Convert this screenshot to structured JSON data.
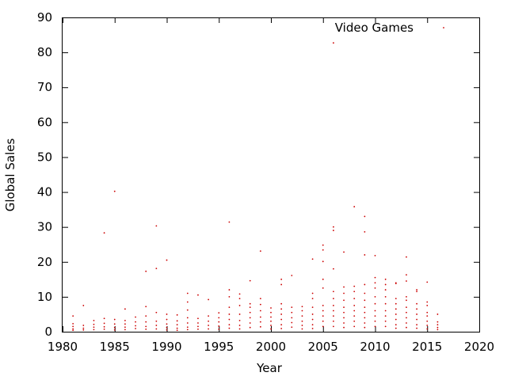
{
  "chart_data": {
    "type": "scatter",
    "title": "",
    "xlabel": "Year",
    "ylabel": "Global Sales",
    "xlim": [
      1980,
      2020
    ],
    "ylim": [
      0,
      90
    ],
    "xticks": [
      1980,
      1985,
      1990,
      1995,
      2000,
      2005,
      2010,
      2015,
      2020
    ],
    "yticks": [
      0,
      10,
      20,
      30,
      40,
      50,
      60,
      70,
      80,
      90
    ],
    "grid": false,
    "legend_position": "top-right",
    "series": [
      {
        "name": "Video Games",
        "color": "#cc0000",
        "marker": "dot",
        "points": [
          [
            1981,
            4.5
          ],
          [
            1981,
            2.3
          ],
          [
            1981,
            1.5
          ],
          [
            1981,
            0.8
          ],
          [
            1981,
            0.4
          ],
          [
            1982,
            7.5
          ],
          [
            1982,
            1.8
          ],
          [
            1982,
            1.0
          ],
          [
            1982,
            0.5
          ],
          [
            1983,
            3.2
          ],
          [
            1983,
            2.1
          ],
          [
            1983,
            1.3
          ],
          [
            1983,
            0.6
          ],
          [
            1984,
            28.3
          ],
          [
            1984,
            3.8
          ],
          [
            1984,
            2.4
          ],
          [
            1984,
            1.4
          ],
          [
            1984,
            0.7
          ],
          [
            1985,
            40.2
          ],
          [
            1985,
            3.5
          ],
          [
            1985,
            2.2
          ],
          [
            1985,
            1.2
          ],
          [
            1985,
            0.5
          ],
          [
            1986,
            6.5
          ],
          [
            1986,
            3.2
          ],
          [
            1986,
            2.2
          ],
          [
            1986,
            1.3
          ],
          [
            1986,
            0.6
          ],
          [
            1987,
            4.2
          ],
          [
            1987,
            2.8
          ],
          [
            1987,
            1.7
          ],
          [
            1987,
            0.9
          ],
          [
            1988,
            17.3
          ],
          [
            1988,
            7.2
          ],
          [
            1988,
            4.5
          ],
          [
            1988,
            2.8
          ],
          [
            1988,
            1.5
          ],
          [
            1988,
            0.7
          ],
          [
            1989,
            30.3
          ],
          [
            1989,
            18.1
          ],
          [
            1989,
            5.5
          ],
          [
            1989,
            3.0
          ],
          [
            1989,
            1.8
          ],
          [
            1989,
            0.8
          ],
          [
            1990,
            20.5
          ],
          [
            1990,
            5.0
          ],
          [
            1990,
            3.5
          ],
          [
            1990,
            2.2
          ],
          [
            1990,
            1.2
          ],
          [
            1990,
            0.5
          ],
          [
            1991,
            4.8
          ],
          [
            1991,
            3.1
          ],
          [
            1991,
            2.0
          ],
          [
            1991,
            1.0
          ],
          [
            1991,
            0.4
          ],
          [
            1992,
            11.0
          ],
          [
            1992,
            8.5
          ],
          [
            1992,
            6.2
          ],
          [
            1992,
            4.0
          ],
          [
            1992,
            2.5
          ],
          [
            1992,
            1.3
          ],
          [
            1992,
            0.6
          ],
          [
            1993,
            10.5
          ],
          [
            1993,
            3.8
          ],
          [
            1993,
            2.5
          ],
          [
            1993,
            1.5
          ],
          [
            1993,
            0.7
          ],
          [
            1994,
            9.2
          ],
          [
            1994,
            4.5
          ],
          [
            1994,
            3.0
          ],
          [
            1994,
            1.8
          ],
          [
            1994,
            0.8
          ],
          [
            1995,
            5.4
          ],
          [
            1995,
            4.0
          ],
          [
            1995,
            2.8
          ],
          [
            1995,
            1.6
          ],
          [
            1995,
            0.7
          ],
          [
            1996,
            31.4
          ],
          [
            1996,
            12.0
          ],
          [
            1996,
            10.0
          ],
          [
            1996,
            7.0
          ],
          [
            1996,
            5.0
          ],
          [
            1996,
            3.5
          ],
          [
            1996,
            2.0
          ],
          [
            1996,
            1.0
          ],
          [
            1997,
            10.8
          ],
          [
            1997,
            9.5
          ],
          [
            1997,
            7.5
          ],
          [
            1997,
            5.0
          ],
          [
            1997,
            3.2
          ],
          [
            1997,
            1.8
          ],
          [
            1997,
            0.8
          ],
          [
            1998,
            14.6
          ],
          [
            1998,
            8.0
          ],
          [
            1998,
            7.0
          ],
          [
            1998,
            5.5
          ],
          [
            1998,
            4.0
          ],
          [
            1998,
            2.5
          ],
          [
            1998,
            1.2
          ],
          [
            1999,
            23.1
          ],
          [
            1999,
            9.5
          ],
          [
            1999,
            7.8
          ],
          [
            1999,
            6.0
          ],
          [
            1999,
            4.2
          ],
          [
            1999,
            2.8
          ],
          [
            1999,
            1.4
          ],
          [
            2000,
            6.8
          ],
          [
            2000,
            5.5
          ],
          [
            2000,
            4.2
          ],
          [
            2000,
            3.0
          ],
          [
            2000,
            1.8
          ],
          [
            2000,
            0.8
          ],
          [
            2001,
            15.0
          ],
          [
            2001,
            13.5
          ],
          [
            2001,
            8.0
          ],
          [
            2001,
            6.5
          ],
          [
            2001,
            5.0
          ],
          [
            2001,
            3.5
          ],
          [
            2001,
            2.0
          ],
          [
            2001,
            0.9
          ],
          [
            2002,
            16.1
          ],
          [
            2002,
            7.0
          ],
          [
            2002,
            5.5
          ],
          [
            2002,
            4.0
          ],
          [
            2002,
            2.6
          ],
          [
            2002,
            1.3
          ],
          [
            2003,
            7.2
          ],
          [
            2003,
            6.0
          ],
          [
            2003,
            4.5
          ],
          [
            2003,
            3.0
          ],
          [
            2003,
            1.8
          ],
          [
            2003,
            0.8
          ],
          [
            2004,
            20.8
          ],
          [
            2004,
            11.0
          ],
          [
            2004,
            9.5
          ],
          [
            2004,
            7.0
          ],
          [
            2004,
            5.0
          ],
          [
            2004,
            3.5
          ],
          [
            2004,
            2.0
          ],
          [
            2004,
            0.9
          ],
          [
            2005,
            24.8
          ],
          [
            2005,
            23.4
          ],
          [
            2005,
            20.1
          ],
          [
            2005,
            15.0
          ],
          [
            2005,
            12.5
          ],
          [
            2005,
            7.5
          ],
          [
            2005,
            6.0
          ],
          [
            2005,
            4.5
          ],
          [
            2005,
            3.0
          ],
          [
            2005,
            1.5
          ],
          [
            2006,
            82.7
          ],
          [
            2006,
            30.0
          ],
          [
            2006,
            29.0
          ],
          [
            2006,
            18.0
          ],
          [
            2006,
            11.5
          ],
          [
            2006,
            9.5
          ],
          [
            2006,
            7.5
          ],
          [
            2006,
            6.0
          ],
          [
            2006,
            4.5
          ],
          [
            2006,
            3.0
          ],
          [
            2006,
            1.5
          ],
          [
            2007,
            22.8
          ],
          [
            2007,
            12.8
          ],
          [
            2007,
            11.0
          ],
          [
            2007,
            9.0
          ],
          [
            2007,
            7.0
          ],
          [
            2007,
            5.5
          ],
          [
            2007,
            4.0
          ],
          [
            2007,
            2.5
          ],
          [
            2007,
            1.2
          ],
          [
            2008,
            35.8
          ],
          [
            2008,
            13.0
          ],
          [
            2008,
            11.5
          ],
          [
            2008,
            9.5
          ],
          [
            2008,
            7.5
          ],
          [
            2008,
            6.0
          ],
          [
            2008,
            4.5
          ],
          [
            2008,
            3.0
          ],
          [
            2008,
            1.5
          ],
          [
            2009,
            33.0
          ],
          [
            2009,
            28.6
          ],
          [
            2009,
            22.0
          ],
          [
            2009,
            13.5
          ],
          [
            2009,
            11.0
          ],
          [
            2009,
            9.0
          ],
          [
            2009,
            7.0
          ],
          [
            2009,
            5.5
          ],
          [
            2009,
            4.0
          ],
          [
            2009,
            2.5
          ],
          [
            2009,
            1.2
          ],
          [
            2010,
            21.8
          ],
          [
            2010,
            15.5
          ],
          [
            2010,
            14.0
          ],
          [
            2010,
            12.5
          ],
          [
            2010,
            10.0
          ],
          [
            2010,
            8.0
          ],
          [
            2010,
            6.0
          ],
          [
            2010,
            4.5
          ],
          [
            2010,
            3.0
          ],
          [
            2010,
            1.5
          ],
          [
            2011,
            15.0
          ],
          [
            2011,
            13.5
          ],
          [
            2011,
            12.0
          ],
          [
            2011,
            10.0
          ],
          [
            2011,
            8.0
          ],
          [
            2011,
            6.0
          ],
          [
            2011,
            4.5
          ],
          [
            2011,
            3.0
          ],
          [
            2011,
            1.5
          ],
          [
            2012,
            14.0
          ],
          [
            2012,
            13.8
          ],
          [
            2012,
            9.5
          ],
          [
            2012,
            8.0
          ],
          [
            2012,
            6.5
          ],
          [
            2012,
            5.0
          ],
          [
            2012,
            3.5
          ],
          [
            2012,
            2.0
          ],
          [
            2012,
            1.0
          ],
          [
            2013,
            21.4
          ],
          [
            2013,
            16.3
          ],
          [
            2013,
            14.5
          ],
          [
            2013,
            10.0
          ],
          [
            2013,
            9.0
          ],
          [
            2013,
            7.0
          ],
          [
            2013,
            5.5
          ],
          [
            2013,
            4.0
          ],
          [
            2013,
            2.5
          ],
          [
            2013,
            1.2
          ],
          [
            2014,
            12.0
          ],
          [
            2014,
            11.5
          ],
          [
            2014,
            8.0
          ],
          [
            2014,
            6.5
          ],
          [
            2014,
            5.0
          ],
          [
            2014,
            3.5
          ],
          [
            2014,
            2.0
          ],
          [
            2014,
            1.0
          ],
          [
            2015,
            14.2
          ],
          [
            2015,
            8.5
          ],
          [
            2015,
            7.5
          ],
          [
            2015,
            5.5
          ],
          [
            2015,
            4.5
          ],
          [
            2015,
            3.0
          ],
          [
            2015,
            1.8
          ],
          [
            2015,
            0.8
          ],
          [
            2016,
            5.0
          ],
          [
            2016,
            2.8
          ],
          [
            2016,
            2.0
          ],
          [
            2016,
            1.2
          ],
          [
            2016,
            0.6
          ]
        ]
      }
    ]
  }
}
